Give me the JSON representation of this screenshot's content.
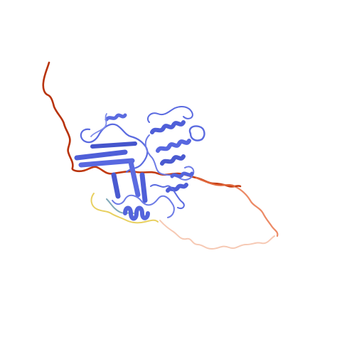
{
  "image": {
    "subject": "protein-ribbon-structure",
    "background": "#ffffff"
  },
  "colors": {
    "core_blue": "#5b6be0",
    "core_blue_dark": "#3f4fc8",
    "core_blue_light": "#8a96ee",
    "tail_red": "#c23a10",
    "tail_dark_red": "#a52a0a",
    "tail_orange": "#e0663a",
    "tail_salmon": "#f0a080",
    "tail_pale": "#f6c9b4",
    "loop_yellow": "#e8d060",
    "loop_teal": "#7fa8b8"
  }
}
